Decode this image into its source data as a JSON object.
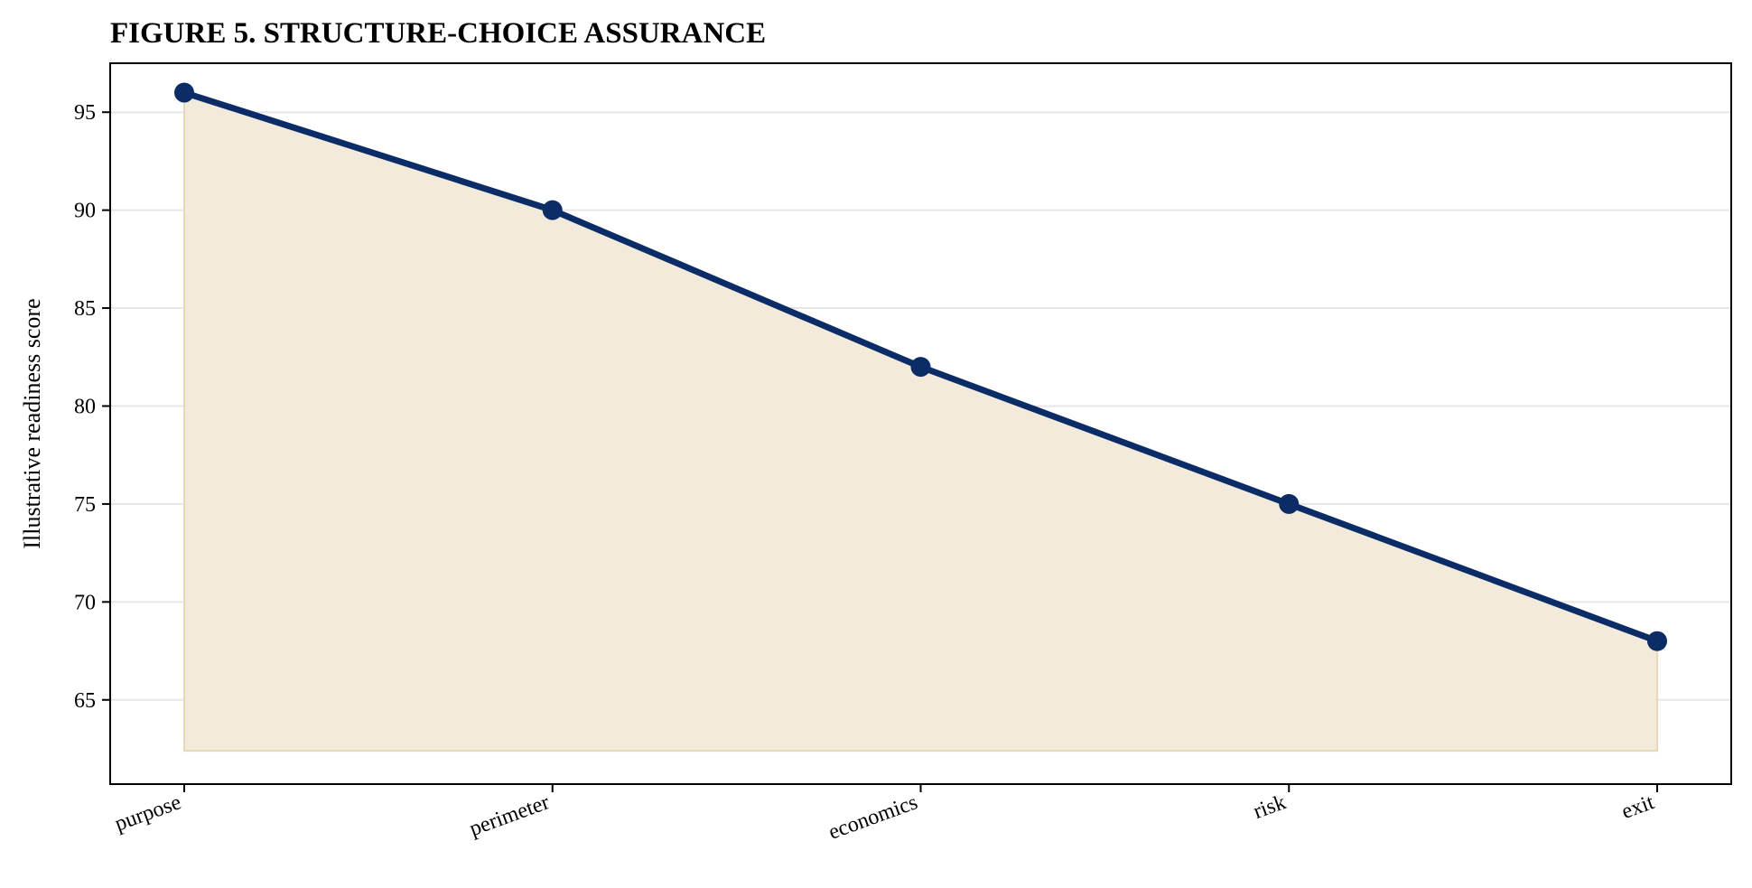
{
  "chart_data": {
    "type": "line",
    "title": "FIGURE 5. STRUCTURE-CHOICE ASSURANCE",
    "xlabel": "",
    "ylabel": "Illustrative readiness score",
    "categories": [
      "purpose",
      "perimeter",
      "economics",
      "risk",
      "exit"
    ],
    "series": [
      {
        "values": [
          96,
          90,
          82,
          75,
          68
        ]
      }
    ],
    "ylim": [
      60.7,
      97.5
    ],
    "yticks": [
      65,
      70,
      75,
      80,
      85,
      90,
      95
    ],
    "ytick_labels": [
      "65",
      "70",
      "75",
      "80",
      "85",
      "90",
      "95"
    ],
    "fill_baseline": 62.4,
    "grid": "horizontal",
    "x_tick_rotation_deg": 20,
    "colors": {
      "line": "#0b2c66",
      "marker": "#0b2c66",
      "area_fill": "#f2eadb",
      "area_edge": "#e8d9b5",
      "grid": "#e6e6e6",
      "axes": "#000000"
    }
  }
}
